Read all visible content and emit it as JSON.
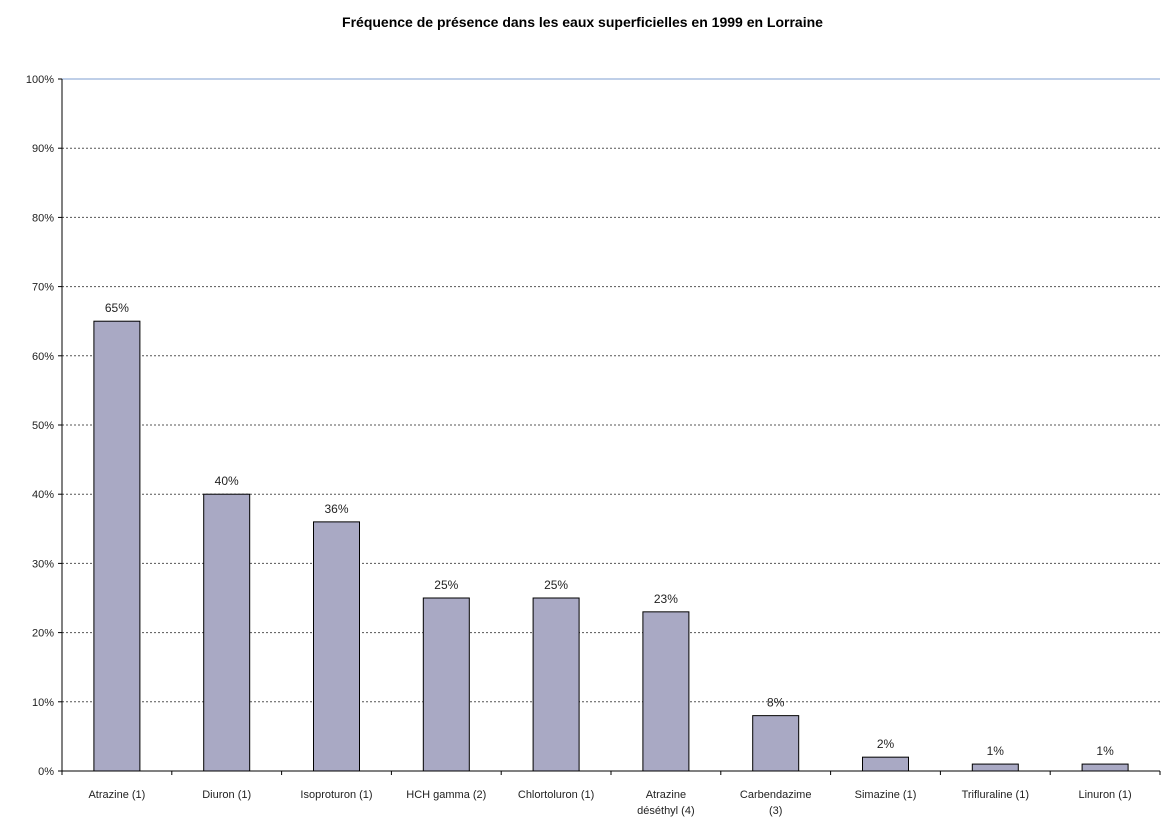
{
  "chart_data": {
    "type": "bar",
    "title": "Fréquence de présence dans les eaux superficielles en 1999 en Lorraine",
    "categories": [
      "Atrazine (1)",
      "Diuron (1)",
      "Isoproturon (1)",
      "HCH gamma (2)",
      "Chlortoluron (1)",
      "Atrazine déséthyl (4)",
      "Carbendazime (3)",
      "Simazine (1)",
      "Trifluraline (1)",
      "Linuron (1)"
    ],
    "category_lines": [
      [
        "Atrazine (1)"
      ],
      [
        "Diuron (1)"
      ],
      [
        "Isoproturon (1)"
      ],
      [
        "HCH gamma (2)"
      ],
      [
        "Chlortoluron (1)"
      ],
      [
        "Atrazine",
        "déséthyl (4)"
      ],
      [
        "Carbendazime",
        "(3)"
      ],
      [
        "Simazine (1)"
      ],
      [
        "Trifluraline (1)"
      ],
      [
        "Linuron (1)"
      ]
    ],
    "values": [
      65,
      40,
      36,
      25,
      25,
      23,
      8,
      2,
      1,
      1
    ],
    "data_labels": [
      "65%",
      "40%",
      "36%",
      "25%",
      "25%",
      "23%",
      "8%",
      "2%",
      "1%",
      "1%"
    ],
    "ylim": [
      0,
      100
    ],
    "ytick_values": [
      0,
      10,
      20,
      30,
      40,
      50,
      60,
      70,
      80,
      90,
      100
    ],
    "yticks": [
      "0%",
      "10%",
      "20%",
      "30%",
      "40%",
      "50%",
      "60%",
      "70%",
      "80%",
      "90%",
      "100%"
    ],
    "xlabel": "",
    "ylabel": "",
    "grid": "horizontal dashed",
    "legend": "none",
    "bar_color": "#a9a9c4",
    "bar_edge_color": "#000000"
  }
}
